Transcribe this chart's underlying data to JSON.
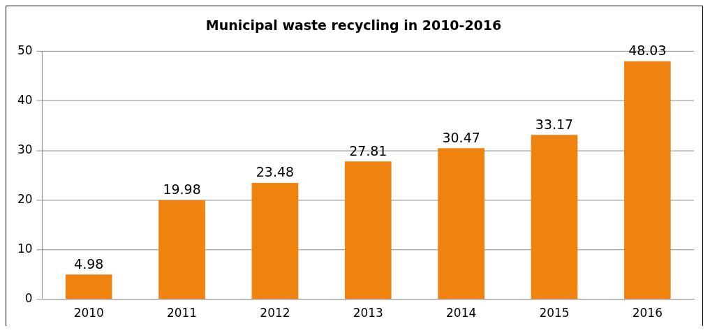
{
  "chart_data": {
    "type": "bar",
    "title": "Municipal waste recycling in 2010-2016",
    "categories": [
      "2010",
      "2011",
      "2012",
      "2013",
      "2014",
      "2015",
      "2016"
    ],
    "values": [
      4.98,
      19.98,
      23.48,
      27.81,
      30.47,
      33.17,
      48.03
    ],
    "color": "#f0820f",
    "ylim": [
      0,
      50
    ],
    "yticks": [
      0,
      10,
      20,
      30,
      40,
      50
    ],
    "grid": "y",
    "data_labels": true,
    "legend": false
  }
}
